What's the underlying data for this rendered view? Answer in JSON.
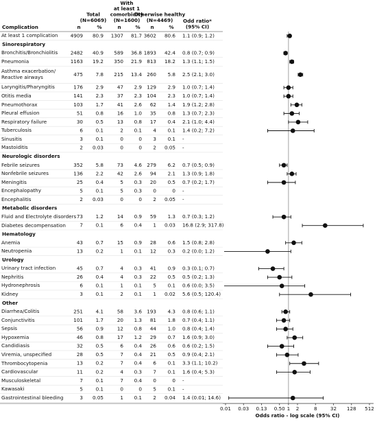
{
  "table": {
    "headers": {
      "complication": "Complication",
      "total": [
        "Total",
        "(N=6069)"
      ],
      "comorbidity": [
        "With",
        "at least 1",
        "comorbidity",
        "(N=1600)"
      ],
      "healthy": [
        "Otherwise healthy",
        "(N=4469)"
      ],
      "odds_ratio": [
        "Odd ratio*",
        "(95% CI)"
      ],
      "subheaders": [
        "n",
        "%",
        "n",
        "%",
        "n",
        "%"
      ]
    },
    "rows": [
      {
        "name": "At least 1 complication",
        "cells": [
          "4909",
          "80.9",
          "1307",
          "81.7",
          "3602",
          "80.6"
        ],
        "or": {
          "value": 1.1,
          "low": 0.9,
          "high": 1.2,
          "label": "1.1 (0.9; 1.2)"
        }
      },
      {
        "section": "Sinorespiratory"
      },
      {
        "name": "Bronchitis/Bronchiolitis",
        "cells": [
          "2482",
          "40.9",
          "589",
          "36.8",
          "1893",
          "42.4"
        ],
        "or": {
          "value": 0.8,
          "low": 0.7,
          "high": 0.9,
          "label": "0.8 (0.7; 0.9)"
        }
      },
      {
        "name": "Pneumonia",
        "cells": [
          "1163",
          "19.2",
          "350",
          "21.9",
          "813",
          "18.2"
        ],
        "or": {
          "value": 1.3,
          "low": 1.1,
          "high": 1.5,
          "label": "1.3 (1.1; 1.5)"
        }
      },
      {
        "name": "Asthma exacerbation/\nReactive airways",
        "cells": [
          "475",
          "7.8",
          "215",
          "13.4",
          "260",
          "5.8"
        ],
        "or": {
          "value": 2.5,
          "low": 2.1,
          "high": 3.0,
          "label": "2.5 (2.1; 3.0)"
        }
      },
      {
        "name": "Laryngitis/Pharyngitis",
        "cells": [
          "176",
          "2.9",
          "47",
          "2.9",
          "129",
          "2.9"
        ],
        "or": {
          "value": 1.0,
          "low": 0.7,
          "high": 1.4,
          "label": "1.0 (0.7; 1.4)"
        }
      },
      {
        "name": "Otitis media",
        "cells": [
          "141",
          "2.3",
          "37",
          "2.3",
          "104",
          "2.3"
        ],
        "or": {
          "value": 1.0,
          "low": 0.7,
          "high": 1.4,
          "label": "1.0 (0.7; 1.4)"
        }
      },
      {
        "name": "Pneumothorax",
        "cells": [
          "103",
          "1.7",
          "41",
          "2.6",
          "62",
          "1.4"
        ],
        "or": {
          "value": 1.9,
          "low": 1.2,
          "high": 2.8,
          "label": "1.9 (1.2; 2.8)"
        }
      },
      {
        "name": "Pleural effusion",
        "cells": [
          "51",
          "0.8",
          "16",
          "1.0",
          "35",
          "0.8"
        ],
        "or": {
          "value": 1.3,
          "low": 0.7,
          "high": 2.3,
          "label": "1.3 (0.7; 2.3)"
        }
      },
      {
        "name": "Respiratory failure",
        "cells": [
          "30",
          "0.5",
          "13",
          "0.8",
          "17",
          "0.4"
        ],
        "or": {
          "value": 2.1,
          "low": 1.0,
          "high": 4.4,
          "label": "2.1 (1.0; 4.4)"
        }
      },
      {
        "name": "Tuberculosis",
        "cells": [
          "6",
          "0.1",
          "2",
          "0.1",
          "4",
          "0.1"
        ],
        "or": {
          "value": 1.4,
          "low": 0.2,
          "high": 7.2,
          "label": "1.4 (0.2; 7.2)"
        }
      },
      {
        "name": "Sinusitis",
        "cells": [
          "3",
          "0.1",
          "0",
          "0",
          "3",
          "0.1"
        ],
        "or": {
          "label": "-"
        }
      },
      {
        "name": "Mastoiditis",
        "cells": [
          "2",
          "0.03",
          "0",
          "0",
          "2",
          "0.05"
        ],
        "or": {
          "label": "-"
        }
      },
      {
        "section": "Neurologic disorders"
      },
      {
        "name": "Febrile seizures",
        "cells": [
          "352",
          "5.8",
          "73",
          "4.6",
          "279",
          "6.2"
        ],
        "or": {
          "value": 0.7,
          "low": 0.5,
          "high": 0.9,
          "label": "0.7 (0.5; 0.9)"
        }
      },
      {
        "name": "Nonfebrile seizures",
        "cells": [
          "136",
          "2.2",
          "42",
          "2.6",
          "94",
          "2.1"
        ],
        "or": {
          "value": 1.3,
          "low": 0.9,
          "high": 1.8,
          "label": "1.3 (0.9; 1.8)"
        }
      },
      {
        "name": "Meningitis",
        "cells": [
          "25",
          "0.4",
          "5",
          "0.3",
          "20",
          "0.5"
        ],
        "or": {
          "value": 0.7,
          "low": 0.2,
          "high": 1.7,
          "label": "0.7 (0.2; 1.7)"
        }
      },
      {
        "name": "Encephalopathy",
        "cells": [
          "5",
          "0.1",
          "5",
          "0.3",
          "0",
          "0"
        ],
        "or": {
          "label": "-"
        }
      },
      {
        "name": "Encephalitis",
        "cells": [
          "2",
          "0.03",
          "0",
          "0",
          "2",
          "0.05"
        ],
        "or": {
          "label": "-"
        }
      },
      {
        "section": "Metabolic disorders"
      },
      {
        "name": "Fluid and Electrolyte disorders",
        "cells": [
          "73",
          "1.2",
          "14",
          "0.9",
          "59",
          "1.3"
        ],
        "or": {
          "value": 0.7,
          "low": 0.3,
          "high": 1.2,
          "label": "0.7 (0.3; 1.2)"
        }
      },
      {
        "name": "Diabetes decompensation",
        "cells": [
          "7",
          "0.1",
          "6",
          "0.4",
          "1",
          "0.03"
        ],
        "or": {
          "value": 16.8,
          "low": 2.9,
          "high": 317.8,
          "label": "16.8 (2.9; 317.8)"
        }
      },
      {
        "section": "Hematology"
      },
      {
        "name": "Anemia",
        "cells": [
          "43",
          "0.7",
          "15",
          "0.9",
          "28",
          "0.6"
        ],
        "or": {
          "value": 1.5,
          "low": 0.8,
          "high": 2.8,
          "label": "1.5 (0.8; 2.8)"
        }
      },
      {
        "name": "Neutropenia",
        "cells": [
          "13",
          "0.2",
          "1",
          "0.1",
          "12",
          "0.3"
        ],
        "or": {
          "value": 0.2,
          "low": 0.0,
          "high": 1.2,
          "label": "0.2 (0.0; 1.2)"
        }
      },
      {
        "section": "Urology"
      },
      {
        "name": "Urinary tract infection",
        "cells": [
          "45",
          "0.7",
          "4",
          "0.3",
          "41",
          "0.9"
        ],
        "or": {
          "value": 0.3,
          "low": 0.1,
          "high": 0.7,
          "label": "0.3 (0.1; 0.7)"
        }
      },
      {
        "name": "Nephritis",
        "cells": [
          "26",
          "0.4",
          "4",
          "0.3",
          "22",
          "0.5"
        ],
        "or": {
          "value": 0.5,
          "low": 0.2,
          "high": 1.3,
          "label": "0.5 (0.2; 1.3)"
        }
      },
      {
        "name": "Hydronephrosis",
        "cells": [
          "6",
          "0.1",
          "1",
          "0.1",
          "5",
          "0.1"
        ],
        "or": {
          "value": 0.6,
          "low": 0.0,
          "high": 3.5,
          "label": "0.6 (0.0; 3.5)"
        }
      },
      {
        "name": "Kidney",
        "cells": [
          "3",
          "0.1",
          "2",
          "0.1",
          "1",
          "0.02"
        ],
        "or": {
          "value": 5.6,
          "low": 0.5,
          "high": 120.4,
          "label": "5.6 (0.5; 120.4)"
        }
      },
      {
        "section": "Other"
      },
      {
        "name": "Diarrhea/Colitis",
        "cells": [
          "251",
          "4.1",
          "58",
          "3.6",
          "193",
          "4.3"
        ],
        "or": {
          "value": 0.8,
          "low": 0.6,
          "high": 1.1,
          "label": "0.8 (0.6; 1.1)"
        }
      },
      {
        "name": "Conjunctivitis",
        "cells": [
          "101",
          "1.7",
          "20",
          "1.3",
          "81",
          "1.8"
        ],
        "or": {
          "value": 0.7,
          "low": 0.4,
          "high": 1.1,
          "label": "0.7 (0.4; 1.1)"
        }
      },
      {
        "name": "Sepsis",
        "cells": [
          "56",
          "0.9",
          "12",
          "0.8",
          "44",
          "1.0"
        ],
        "or": {
          "value": 0.8,
          "low": 0.4,
          "high": 1.4,
          "label": "0.8 (0.4; 1.4)"
        }
      },
      {
        "name": "Hypoxemia",
        "cells": [
          "46",
          "0.8",
          "17",
          "1.2",
          "29",
          "0.7"
        ],
        "or": {
          "value": 1.6,
          "low": 0.9,
          "high": 3.0,
          "label": "1.6 (0.9; 3.0)"
        }
      },
      {
        "name": "Candidiasis",
        "cells": [
          "32",
          "0.5",
          "6",
          "0.4",
          "26",
          "0.6"
        ],
        "or": {
          "value": 0.6,
          "low": 0.2,
          "high": 1.5,
          "label": "0.6 (0.2; 1.5)"
        }
      },
      {
        "name": "Viremia, unspecified",
        "cells": [
          "28",
          "0.5",
          "7",
          "0.4",
          "21",
          "0.5"
        ],
        "or": {
          "value": 0.9,
          "low": 0.4,
          "high": 2.1,
          "label": "0.9 (0.4; 2.1)"
        }
      },
      {
        "name": "Thrombocytopenia",
        "cells": [
          "13",
          "0.2",
          "7",
          "0.4",
          "6",
          "0.1"
        ],
        "or": {
          "value": 3.3,
          "low": 1.1,
          "high": 10.2,
          "label": "3.3 (1.1; 10.2)"
        }
      },
      {
        "name": "Cardiovascular",
        "cells": [
          "11",
          "0.2",
          "4",
          "0.3",
          "7",
          "0.1"
        ],
        "or": {
          "value": 1.6,
          "low": 0.4,
          "high": 5.3,
          "label": "1.6 (0.4; 5.3)"
        }
      },
      {
        "name": "Musculoskeletal",
        "cells": [
          "7",
          "0.1",
          "7",
          "0.4",
          "0",
          "0"
        ],
        "or": {
          "label": "-"
        }
      },
      {
        "name": "Kawasaki",
        "cells": [
          "5",
          "0.1",
          "0",
          "0",
          "5",
          "0.1"
        ],
        "or": {
          "label": "-"
        }
      },
      {
        "name": "Gastrointestinal bleeding",
        "cells": [
          "3",
          "0.05",
          "1",
          "0.1",
          "2",
          "0.04"
        ],
        "or": {
          "value": 1.4,
          "low": 0.01,
          "high": 14.6,
          "label": "1.4 (0.01; 14.6)"
        }
      }
    ]
  },
  "chart_data": {
    "type": "forest",
    "xlabel": "Odds ratio - log scale (95% CI)",
    "log": true,
    "reference": 1,
    "color": "#111111",
    "xlim": [
      0.0078125,
      512
    ],
    "xticks": [
      {
        "value": 0.0078125,
        "label": "0.01"
      },
      {
        "value": 0.03125,
        "label": "0.03"
      },
      {
        "value": 0.125,
        "label": "0.13"
      },
      {
        "value": 0.5,
        "label": "0.50"
      },
      1,
      2,
      8,
      32,
      128,
      512
    ]
  }
}
